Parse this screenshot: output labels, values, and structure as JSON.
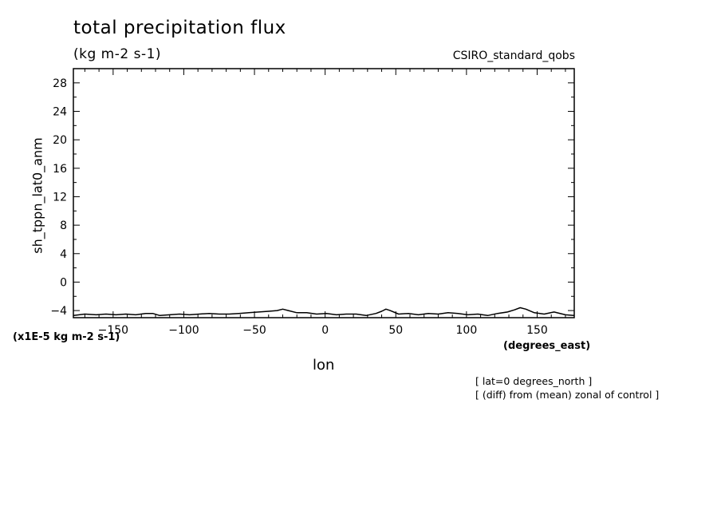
{
  "chart_data": {
    "type": "line",
    "title": "total precipitation flux",
    "subtitle": "(kg m-2 s-1)",
    "source_label": "CSIRO_standard_qobs",
    "ylabel": "sh_tppn_lat0_anm",
    "y_scale_note": "(x1E-5 kg m-2 s-1)",
    "xlabel": "lon",
    "x_units": "(degrees_east)",
    "annotations": [
      "[ lat=0 degrees_north ]",
      "[ (diff) from (mean) zonal of control ]"
    ],
    "xlim": [
      -178.125,
      176.25
    ],
    "ylim": [
      -5,
      30
    ],
    "x_major_ticks": [
      -150,
      -100,
      -50,
      0,
      50,
      100,
      150
    ],
    "x_tick_labels": [
      "−150",
      "−100",
      "−50",
      "0",
      "50",
      "100",
      "150"
    ],
    "y_major_ticks": [
      -4,
      0,
      4,
      8,
      12,
      16,
      20,
      24,
      28
    ],
    "y_tick_labels": [
      "−4",
      "0",
      "4",
      "8",
      "12",
      "16",
      "20",
      "24",
      "28"
    ],
    "grid": false,
    "series": [
      {
        "x": [
          -178,
          -170,
          -162,
          -155,
          -148,
          -141,
          -134,
          -127,
          -122,
          -117,
          -110,
          -103,
          -96,
          -89,
          -82,
          -75,
          -68,
          -61,
          -54,
          -47,
          -40,
          -34,
          -30,
          -26,
          -20,
          -13,
          -6,
          1,
          8,
          15,
          22,
          29,
          36,
          40,
          43,
          46,
          52,
          59,
          66,
          73,
          80,
          87,
          94,
          101,
          108,
          115,
          122,
          129,
          134,
          138,
          142,
          148,
          155,
          162,
          170,
          176
        ],
        "y": [
          -4.7,
          -4.5,
          -4.6,
          -4.5,
          -4.6,
          -4.5,
          -4.6,
          -4.4,
          -4.4,
          -4.7,
          -4.6,
          -4.5,
          -4.6,
          -4.5,
          -4.4,
          -4.5,
          -4.5,
          -4.4,
          -4.3,
          -4.2,
          -4.1,
          -4.0,
          -3.8,
          -4.0,
          -4.3,
          -4.3,
          -4.5,
          -4.4,
          -4.6,
          -4.5,
          -4.5,
          -4.7,
          -4.4,
          -4.1,
          -3.8,
          -4.0,
          -4.5,
          -4.4,
          -4.6,
          -4.4,
          -4.5,
          -4.3,
          -4.4,
          -4.6,
          -4.5,
          -4.7,
          -4.4,
          -4.2,
          -3.9,
          -3.6,
          -3.8,
          -4.3,
          -4.5,
          -4.2,
          -4.6,
          -4.7
        ]
      }
    ]
  }
}
